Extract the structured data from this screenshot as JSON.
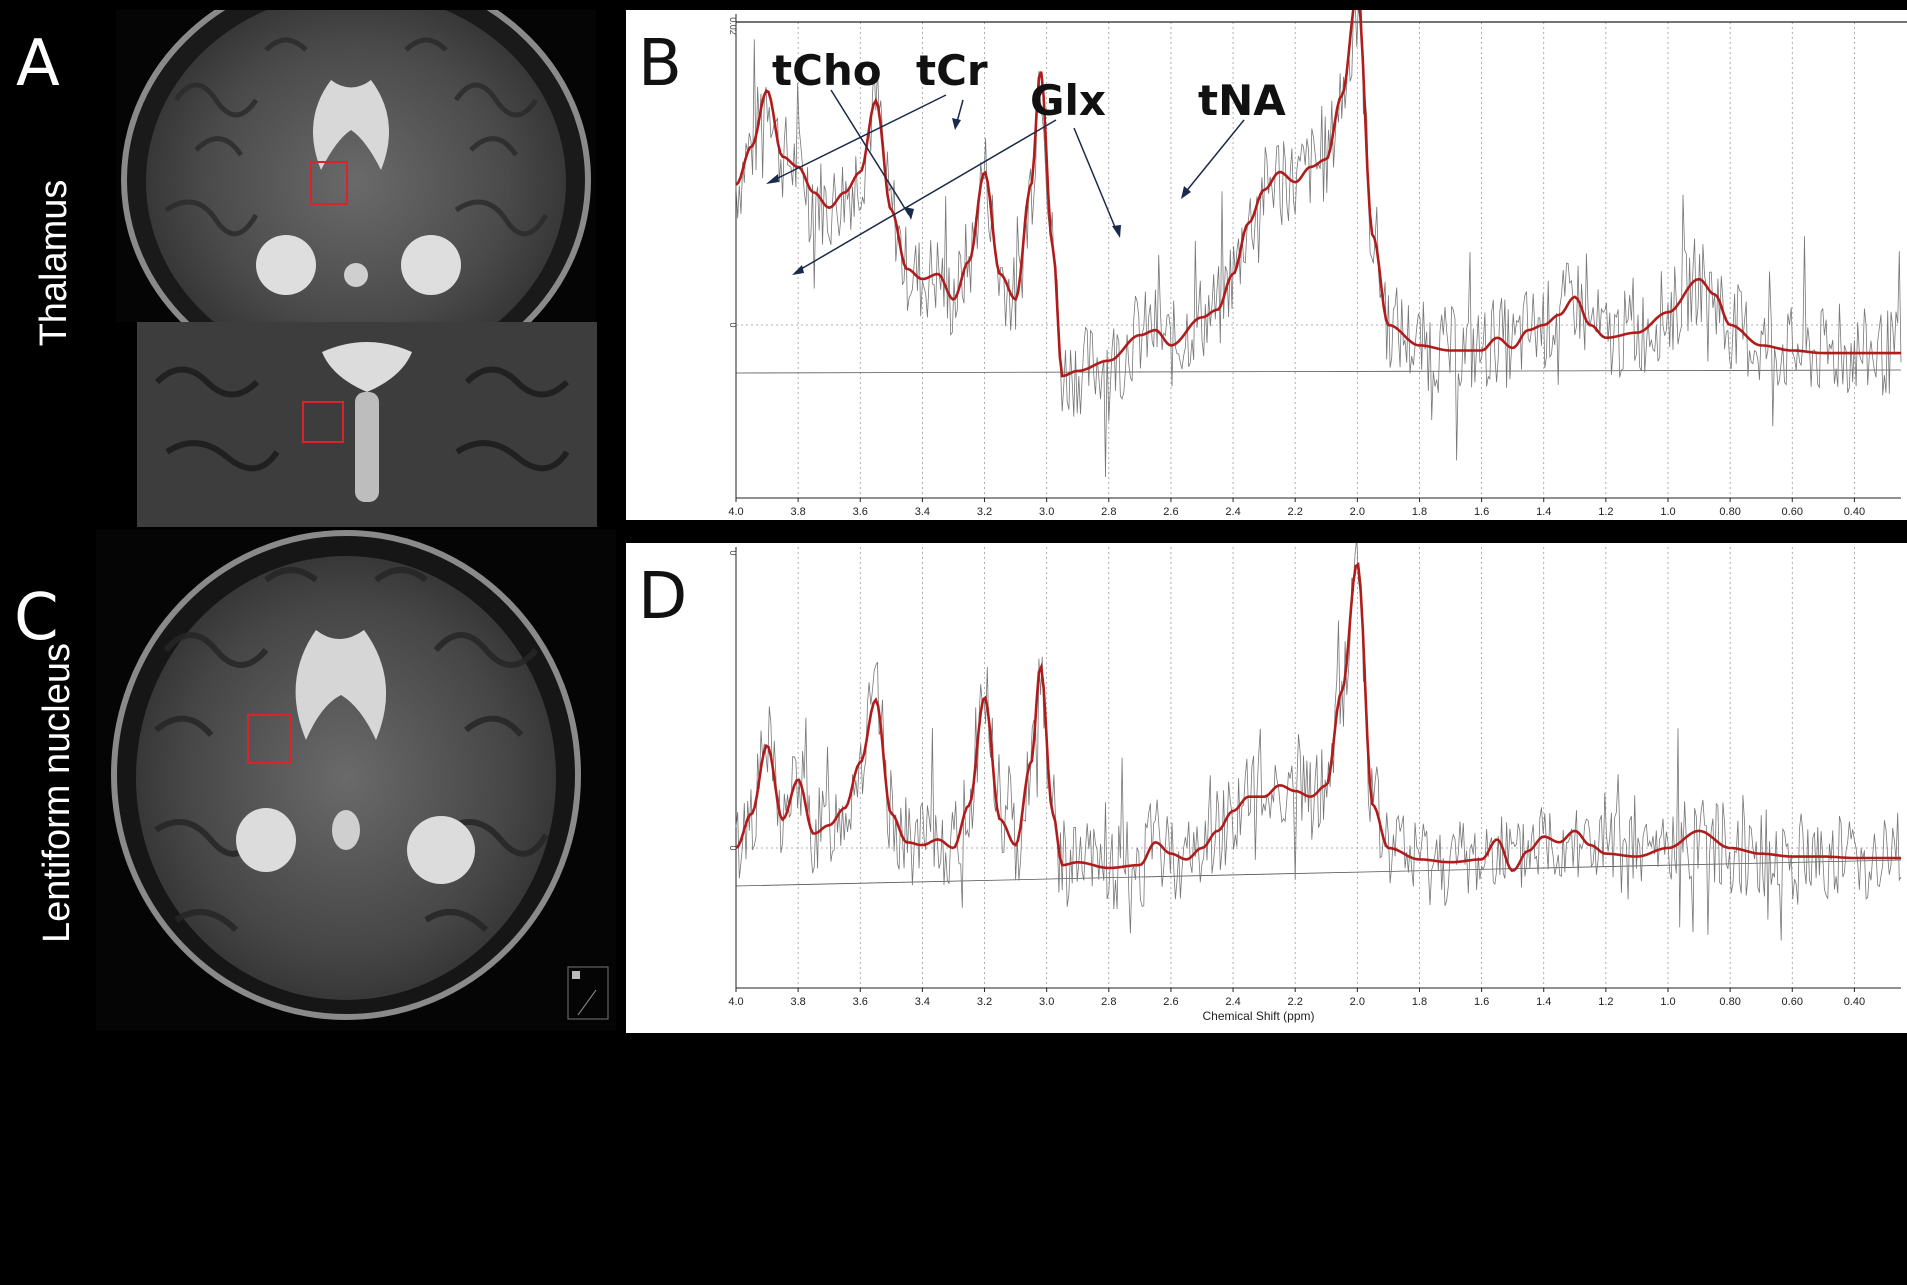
{
  "panels": {
    "A": "A",
    "B": "B",
    "C": "C",
    "D": "D"
  },
  "side_labels": {
    "top": "Thalamus",
    "bottom": "Lentiform nucleus"
  },
  "annotations": {
    "tcho": "tCho",
    "tcr": "tCr",
    "glx": "Glx",
    "tna": "tNA"
  },
  "colors": {
    "fit_line": "#b01c1c",
    "raw_line": "#777777",
    "roi_box": "#d8242a"
  },
  "chart_data": [
    {
      "type": "line",
      "panel": "B",
      "title": "",
      "xlabel": "",
      "ylabel": "",
      "x_reversed": true,
      "xlim": [
        4.0,
        0.25
      ],
      "x_ticks": [
        "4.0",
        "3.8",
        "3.6",
        "3.4",
        "3.2",
        "3.0",
        "2.8",
        "2.6",
        "2.4",
        "2.2",
        "2.0",
        "1.8",
        "1.6",
        "1.4",
        "1.2",
        "1.0",
        "0.80",
        "0.60",
        "0.40"
      ],
      "y_ticks": [
        "0.02",
        "0"
      ],
      "grid": "vertical dotted",
      "series": [
        {
          "x": [
            4.0,
            3.95,
            3.9,
            3.85,
            3.8,
            3.75,
            3.7,
            3.65,
            3.6,
            3.55,
            3.5,
            3.45,
            3.4,
            3.35,
            3.3,
            3.25,
            3.2,
            3.15,
            3.1,
            3.05,
            3.02,
            2.98,
            2.95,
            2.9,
            2.8,
            2.7,
            2.65,
            2.6,
            2.5,
            2.45,
            2.4,
            2.35,
            2.3,
            2.25,
            2.2,
            2.15,
            2.1,
            2.05,
            2.0,
            1.95,
            1.9,
            1.8,
            1.7,
            1.6,
            1.55,
            1.5,
            1.45,
            1.4,
            1.35,
            1.3,
            1.25,
            1.2,
            1.1,
            1.0,
            0.9,
            0.85,
            0.8,
            0.7,
            0.6,
            0.5,
            0.4,
            0.3,
            0.25
          ],
          "y": [
            0.55,
            0.7,
            0.92,
            0.66,
            0.62,
            0.52,
            0.46,
            0.52,
            0.6,
            0.88,
            0.45,
            0.22,
            0.18,
            0.2,
            0.1,
            0.25,
            0.6,
            0.2,
            0.1,
            0.55,
            1.0,
            0.3,
            -0.2,
            -0.18,
            -0.14,
            -0.04,
            -0.02,
            -0.08,
            0.03,
            0.06,
            0.2,
            0.4,
            0.53,
            0.6,
            0.56,
            0.62,
            0.65,
            0.9,
            1.3,
            0.35,
            0.0,
            -0.08,
            -0.1,
            -0.1,
            -0.05,
            -0.09,
            -0.02,
            0.0,
            0.04,
            0.11,
            0.0,
            -0.05,
            -0.03,
            0.05,
            0.18,
            0.12,
            0.0,
            -0.08,
            -0.1,
            -0.11,
            -0.11,
            -0.11,
            -0.11
          ]
        }
      ]
    },
    {
      "type": "line",
      "panel": "D",
      "title": "",
      "xlabel": "Chemical Shift (ppm)",
      "ylabel": "",
      "x_reversed": true,
      "xlim": [
        4.0,
        0.25
      ],
      "x_ticks": [
        "4.0",
        "3.8",
        "3.6",
        "3.4",
        "3.2",
        "3.0",
        "2.8",
        "2.6",
        "2.4",
        "2.2",
        "2.0",
        "1.8",
        "1.6",
        "1.4",
        "1.2",
        "1.0",
        "0.80",
        "0.60",
        "0.40"
      ],
      "y_ticks": [
        "0",
        "0"
      ],
      "grid": "vertical dotted",
      "series": [
        {
          "x": [
            4.0,
            3.95,
            3.9,
            3.85,
            3.8,
            3.75,
            3.7,
            3.65,
            3.6,
            3.55,
            3.5,
            3.45,
            3.4,
            3.35,
            3.3,
            3.25,
            3.2,
            3.15,
            3.1,
            3.05,
            3.02,
            2.98,
            2.95,
            2.9,
            2.8,
            2.7,
            2.65,
            2.6,
            2.55,
            2.5,
            2.45,
            2.4,
            2.35,
            2.3,
            2.25,
            2.2,
            2.15,
            2.1,
            2.05,
            2.0,
            1.95,
            1.9,
            1.8,
            1.7,
            1.6,
            1.55,
            1.5,
            1.45,
            1.4,
            1.35,
            1.3,
            1.25,
            1.2,
            1.1,
            1.0,
            0.9,
            0.8,
            0.7,
            0.6,
            0.5,
            0.4,
            0.3,
            0.25
          ],
          "y": [
            0.0,
            0.12,
            0.36,
            0.1,
            0.24,
            0.05,
            0.08,
            0.14,
            0.3,
            0.52,
            0.12,
            0.02,
            0.01,
            0.03,
            0.0,
            0.15,
            0.53,
            0.1,
            0.01,
            0.3,
            0.64,
            0.12,
            -0.06,
            -0.05,
            -0.07,
            -0.06,
            0.02,
            -0.02,
            -0.04,
            0.0,
            0.06,
            0.13,
            0.18,
            0.18,
            0.22,
            0.2,
            0.18,
            0.22,
            0.55,
            1.0,
            0.15,
            0.0,
            -0.04,
            -0.05,
            -0.04,
            0.03,
            -0.08,
            -0.01,
            0.04,
            0.02,
            0.06,
            0.01,
            -0.02,
            -0.03,
            0.0,
            0.06,
            0.0,
            -0.02,
            -0.03,
            -0.03,
            -0.035,
            -0.035,
            -0.035
          ]
        }
      ]
    }
  ]
}
